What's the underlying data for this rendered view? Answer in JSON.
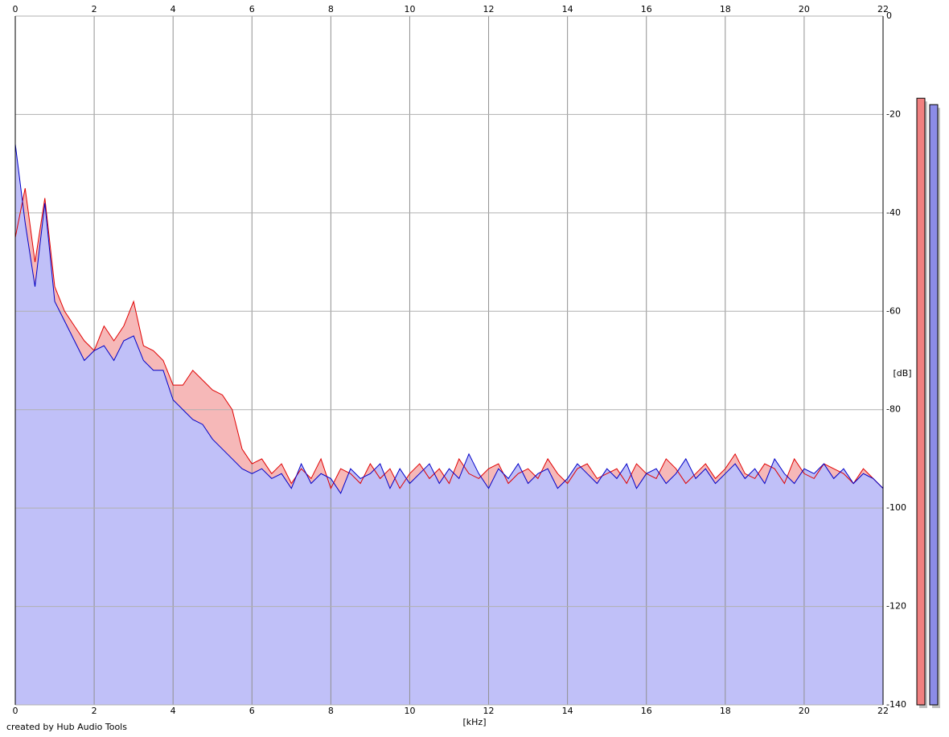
{
  "chart_data": {
    "type": "spectrum",
    "x_label": "[kHz]",
    "y_label": "[dB]",
    "credit": "created by Hub Audio Tools",
    "xlim": [
      0,
      22
    ],
    "ylim": [
      0,
      -140
    ],
    "xticks": [
      0,
      2,
      4,
      6,
      8,
      10,
      12,
      14,
      16,
      18,
      20,
      22
    ],
    "yticks": [
      0,
      -20,
      -40,
      -60,
      -80,
      -100,
      -120,
      -140
    ],
    "grid": true,
    "x": [
      0,
      0.25,
      0.5,
      0.75,
      1,
      1.25,
      1.5,
      1.75,
      2,
      2.25,
      2.5,
      2.75,
      3,
      3.25,
      3.5,
      3.75,
      4,
      4.25,
      4.5,
      4.75,
      5,
      5.25,
      5.5,
      5.75,
      6,
      6.25,
      6.5,
      6.75,
      7,
      7.25,
      7.5,
      7.75,
      8,
      8.25,
      8.5,
      8.75,
      9,
      9.25,
      9.5,
      9.75,
      10,
      10.25,
      10.5,
      10.75,
      11,
      11.25,
      11.5,
      11.75,
      12,
      12.25,
      12.5,
      12.75,
      13,
      13.25,
      13.5,
      13.75,
      14,
      14.25,
      14.5,
      14.75,
      15,
      15.25,
      15.5,
      15.75,
      16,
      16.25,
      16.5,
      16.75,
      17,
      17.25,
      17.5,
      17.75,
      18,
      18.25,
      18.5,
      18.75,
      19,
      19.25,
      19.5,
      19.75,
      20,
      20.25,
      20.5,
      20.75,
      21,
      21.25,
      21.5,
      21.75,
      22
    ],
    "series": [
      {
        "color": "#e00000",
        "fill": "#f6b8b8",
        "values": [
          -45,
          -35,
          -50,
          -37,
          -55,
          -60,
          -63,
          -66,
          -68,
          -63,
          -66,
          -63,
          -58,
          -67,
          -68,
          -70,
          -75,
          -75,
          -72,
          -74,
          -76,
          -77,
          -80,
          -88,
          -91,
          -90,
          -93,
          -91,
          -95,
          -92,
          -94,
          -90,
          -96,
          -92,
          -93,
          -95,
          -91,
          -94,
          -92,
          -96,
          -93,
          -91,
          -94,
          -92,
          -95,
          -90,
          -93,
          -94,
          -92,
          -91,
          -95,
          -93,
          -92,
          -94,
          -90,
          -93,
          -95,
          -92,
          -91,
          -94,
          -93,
          -92,
          -95,
          -91,
          -93,
          -94,
          -90,
          -92,
          -95,
          -93,
          -91,
          -94,
          -92,
          -89,
          -93,
          -94,
          -91,
          -92,
          -95,
          -90,
          -93,
          -94,
          -91,
          -92,
          -93,
          -95,
          -92,
          -94,
          -96
        ]
      },
      {
        "color": "#0000c8",
        "fill": "#c0c0f8",
        "values": [
          -26,
          -42,
          -55,
          -38,
          -58,
          -62,
          -66,
          -70,
          -68,
          -67,
          -70,
          -66,
          -65,
          -70,
          -72,
          -72,
          -78,
          -80,
          -82,
          -83,
          -86,
          -88,
          -90,
          -92,
          -93,
          -92,
          -94,
          -93,
          -96,
          -91,
          -95,
          -93,
          -94,
          -97,
          -92,
          -94,
          -93,
          -91,
          -96,
          -92,
          -95,
          -93,
          -91,
          -95,
          -92,
          -94,
          -89,
          -93,
          -96,
          -92,
          -94,
          -91,
          -95,
          -93,
          -92,
          -96,
          -94,
          -91,
          -93,
          -95,
          -92,
          -94,
          -91,
          -96,
          -93,
          -92,
          -95,
          -93,
          -90,
          -94,
          -92,
          -95,
          -93,
          -91,
          -94,
          -92,
          -95,
          -90,
          -93,
          -95,
          -92,
          -93,
          -91,
          -94,
          -92,
          -95,
          -93,
          -94,
          -96
        ]
      }
    ],
    "meters": [
      {
        "color": "#f08080",
        "value": -16.7
      },
      {
        "color": "#8c8ce8",
        "value": -18
      }
    ]
  }
}
